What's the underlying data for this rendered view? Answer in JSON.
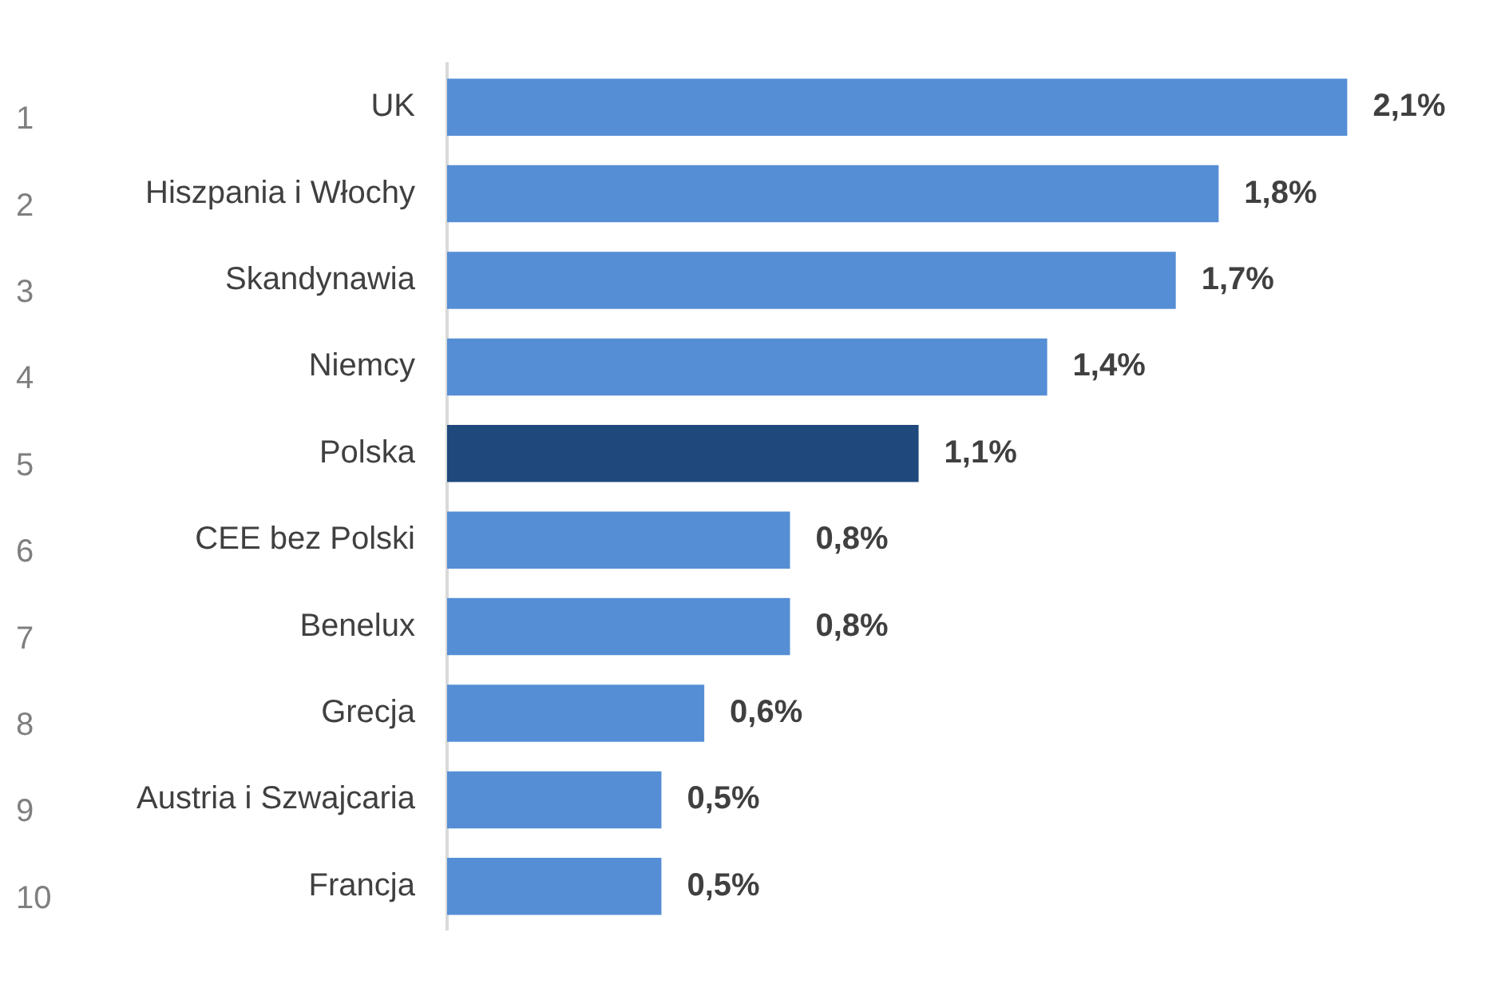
{
  "chart_data": {
    "type": "bar",
    "orientation": "horizontal",
    "categories": [
      "UK",
      "Hiszpania i Włochy",
      "Skandynawia",
      "Niemcy",
      "Polska",
      "CEE bez Polski",
      "Benelux",
      "Grecja",
      "Austria i Szwajcaria",
      "Francja"
    ],
    "values": [
      2.1,
      1.8,
      1.7,
      1.4,
      1.1,
      0.8,
      0.8,
      0.6,
      0.5,
      0.5
    ],
    "value_labels": [
      "2,1%",
      "1,8%",
      "1,7%",
      "1,4%",
      "1,1%",
      "0,8%",
      "0,8%",
      "0,6%",
      "0,5%",
      "0,5%"
    ],
    "colors": [
      "#558ed5",
      "#558ed5",
      "#558ed5",
      "#558ed5",
      "#1f497d",
      "#558ed5",
      "#558ed5",
      "#558ed5",
      "#558ed5",
      "#558ed5"
    ],
    "annotations": [
      "1",
      "2",
      "3",
      "4",
      "5",
      "6",
      "7",
      "8",
      "9",
      "10"
    ],
    "grid": false,
    "legend": false
  }
}
